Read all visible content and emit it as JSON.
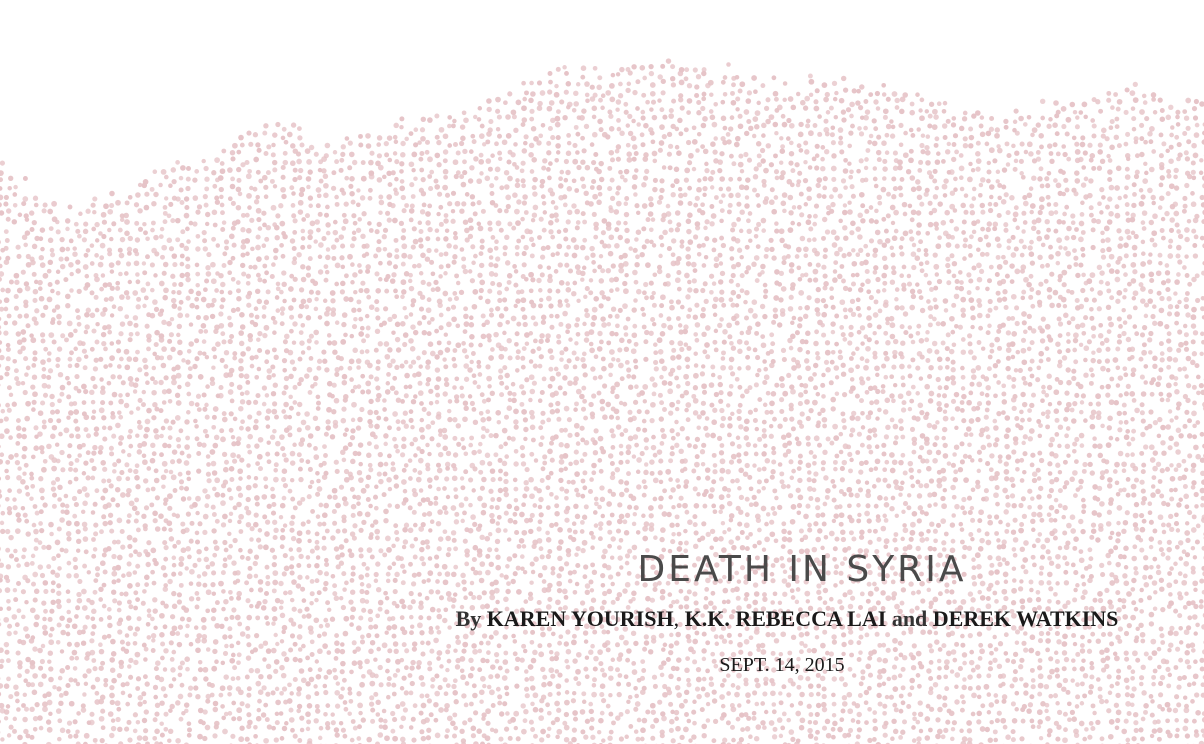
{
  "headline": "DEATH IN SYRIA",
  "byline": {
    "by": "By",
    "author_1": "KAREN YOURISH",
    "separator": ",",
    "author_2": "K.K. REBECCA LAI",
    "conjunction": "and",
    "author_3": "DEREK WATKINS"
  },
  "dateline": "SEPT. 14, 2015",
  "colors": {
    "dot": "#e6c3c7",
    "background": "#ffffff",
    "headline": "#4a4a4a",
    "byline": "#1a1a1a"
  }
}
